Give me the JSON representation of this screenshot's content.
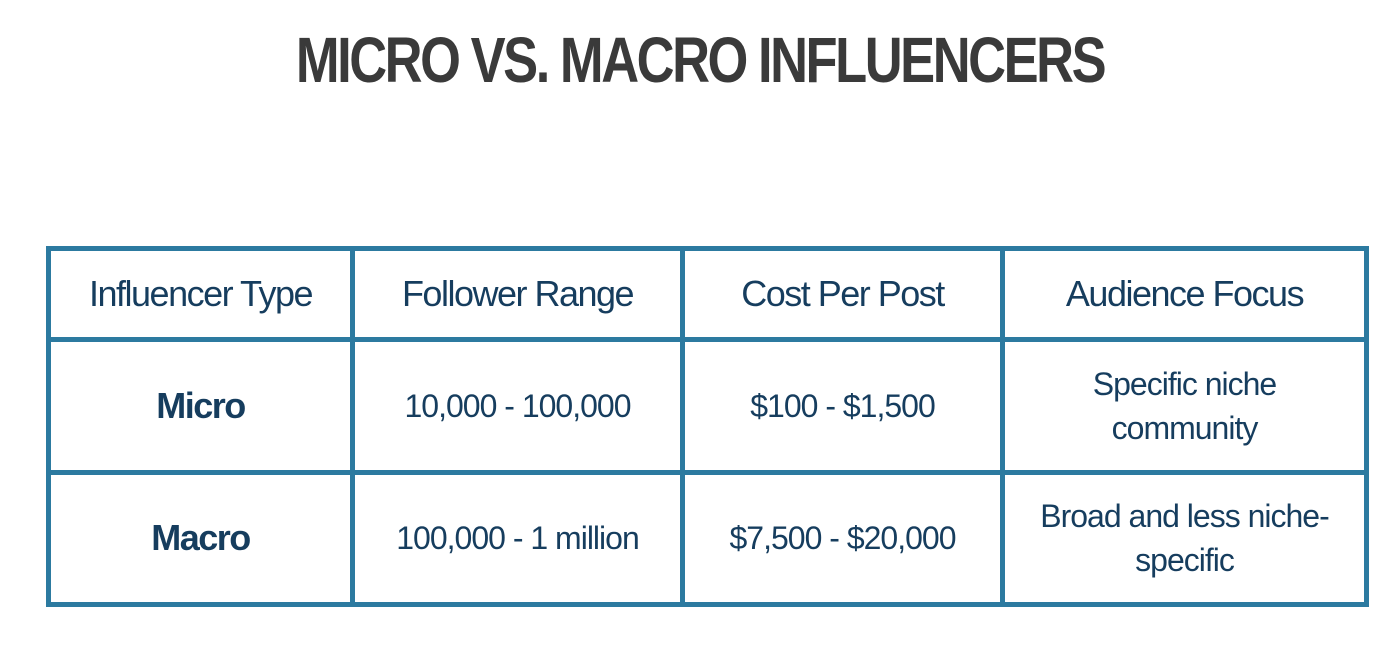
{
  "title": "MICRO VS. MACRO INFLUENCERS",
  "table": {
    "header": [
      "Influencer Type",
      "Follower Range",
      "Cost Per Post",
      "Audience Focus"
    ],
    "rows": [
      [
        "Micro",
        "10,000 - 100,000",
        "$100 - $1,500",
        "Specific niche community"
      ],
      [
        "Macro",
        "100,000 - 1 million",
        "$7,500 - $20,000",
        "Broad and less niche-specific"
      ]
    ]
  }
}
